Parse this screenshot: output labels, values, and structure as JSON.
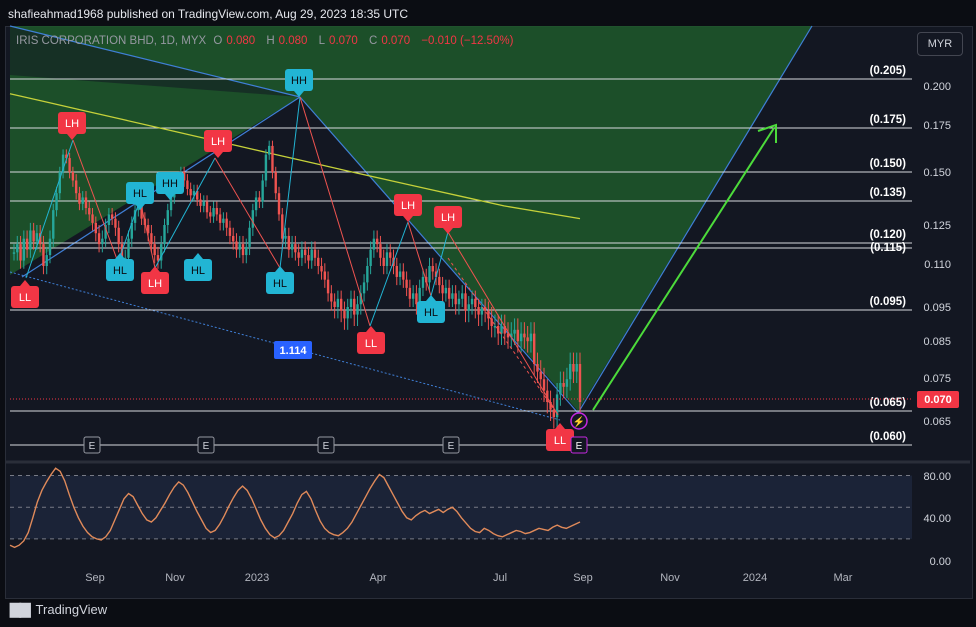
{
  "attribution": "shafieahmad1968 published on TradingView.com, Aug 29, 2023 18:35 UTC",
  "symbol": {
    "name": "IRIS CORPORATION BHD, 1D, MYX",
    "o_label": "O",
    "o": "0.080",
    "h_label": "H",
    "h": "0.080",
    "l_label": "L",
    "l": "0.070",
    "c_label": "C",
    "c": "0.070",
    "change": "−0.010 (−12.50%)"
  },
  "currency_button": "MYR",
  "brand": "TradingView",
  "colors": {
    "bull": "#26a69a",
    "bear": "#ef5350",
    "label_red": "#f23645",
    "label_cyan": "#22b5d4",
    "channel_fill": "#1e5b2b",
    "rsi_line": "#e08a5a",
    "ema": "#c5d13a",
    "arrow": "#4cdb3b"
  },
  "chart_data": [
    {
      "type": "candlestick",
      "title": "",
      "x_tick_labels": [
        "Sep",
        "Nov",
        "2023",
        "Apr",
        "Jul",
        "Sep",
        "Nov",
        "2024",
        "Mar"
      ],
      "y_tick_labels": [
        "0.200",
        "0.175",
        "0.150",
        "0.125",
        "0.110",
        "0.095",
        "0.085",
        "0.075",
        "0.065"
      ],
      "current_price": "0.070",
      "fib_levels": [
        {
          "label": "(0.205)",
          "value": 0.205
        },
        {
          "label": "(0.175)",
          "value": 0.175
        },
        {
          "label": "(0.150)",
          "value": 0.15
        },
        {
          "label": "(0.135)",
          "value": 0.135
        },
        {
          "label": "(0.120)",
          "value": 0.12
        },
        {
          "label": "(0.115)",
          "value": 0.115
        },
        {
          "label": "(0.095)",
          "value": 0.095
        },
        {
          "label": "(0.065)",
          "value": 0.065
        },
        {
          "label": "(0.060)",
          "value": 0.06
        }
      ],
      "swing_labels": [
        "LL",
        "LH",
        "HL",
        "HL",
        "LH",
        "HH",
        "HL",
        "LH",
        "HL",
        "HH",
        "LL",
        "LH",
        "HL",
        "LH",
        "LL"
      ],
      "event_markers": [
        "E",
        "E",
        "E",
        "E",
        "E"
      ],
      "annotation": "1.114",
      "closes": [
        0.115,
        0.118,
        0.112,
        0.12,
        0.116,
        0.123,
        0.119,
        0.122,
        0.118,
        0.11,
        0.114,
        0.12,
        0.132,
        0.14,
        0.15,
        0.16,
        0.158,
        0.15,
        0.146,
        0.14,
        0.135,
        0.138,
        0.133,
        0.13,
        0.126,
        0.122,
        0.118,
        0.12,
        0.125,
        0.13,
        0.128,
        0.124,
        0.118,
        0.112,
        0.113,
        0.12,
        0.126,
        0.132,
        0.135,
        0.128,
        0.125,
        0.122,
        0.118,
        0.114,
        0.112,
        0.118,
        0.125,
        0.132,
        0.138,
        0.143,
        0.147,
        0.15,
        0.146,
        0.142,
        0.139,
        0.141,
        0.137,
        0.134,
        0.136,
        0.131,
        0.129,
        0.133,
        0.13,
        0.126,
        0.128,
        0.124,
        0.121,
        0.119,
        0.116,
        0.118,
        0.114,
        0.117,
        0.124,
        0.132,
        0.138,
        0.136,
        0.146,
        0.16,
        0.165,
        0.15,
        0.14,
        0.13,
        0.12,
        0.121,
        0.116,
        0.118,
        0.115,
        0.113,
        0.116,
        0.114,
        0.112,
        0.116,
        0.113,
        0.11,
        0.108,
        0.105,
        0.1,
        0.097,
        0.095,
        0.098,
        0.094,
        0.092,
        0.095,
        0.098,
        0.093,
        0.096,
        0.1,
        0.104,
        0.11,
        0.116,
        0.12,
        0.118,
        0.113,
        0.11,
        0.115,
        0.113,
        0.11,
        0.106,
        0.108,
        0.105,
        0.102,
        0.098,
        0.1,
        0.096,
        0.102,
        0.106,
        0.104,
        0.11,
        0.108,
        0.106,
        0.103,
        0.1,
        0.102,
        0.098,
        0.1,
        0.096,
        0.098,
        0.1,
        0.094,
        0.096,
        0.098,
        0.095,
        0.093,
        0.095,
        0.094,
        0.092,
        0.09,
        0.09,
        0.088,
        0.09,
        0.088,
        0.087,
        0.088,
        0.089,
        0.086,
        0.088,
        0.087,
        0.086,
        0.088,
        0.08,
        0.078,
        0.076,
        0.073,
        0.07,
        0.068,
        0.066,
        0.072,
        0.075,
        0.074,
        0.076,
        0.08,
        0.078,
        0.08,
        0.07
      ],
      "ema": [
        0.195,
        0.19,
        0.185,
        0.18,
        0.175,
        0.17,
        0.165,
        0.16,
        0.155,
        0.15,
        0.146,
        0.142,
        0.138,
        0.134,
        0.131,
        0.128
      ],
      "rsi": {
        "ylim": [
          0,
          90
        ],
        "y_tick_labels": [
          "80.00",
          "40.00",
          "0.00"
        ],
        "values": [
          14,
          12,
          14,
          18,
          26,
          40,
          55,
          66,
          74,
          81,
          87,
          84,
          75,
          62,
          50,
          40,
          32,
          26,
          22,
          20,
          19,
          22,
          28,
          38,
          48,
          58,
          63,
          60,
          52,
          44,
          38,
          36,
          40,
          47,
          54,
          62,
          69,
          74,
          71,
          64,
          55,
          46,
          38,
          30,
          26,
          28,
          34,
          42,
          51,
          59,
          66,
          70,
          66,
          58,
          48,
          38,
          30,
          24,
          21,
          23,
          28,
          36,
          44,
          54,
          62,
          65,
          58,
          47,
          37,
          30,
          26,
          24,
          23,
          26,
          30,
          36,
          44,
          52,
          60,
          68,
          75,
          81,
          78,
          70,
          62,
          54,
          46,
          40,
          38,
          42,
          45,
          47,
          44,
          46,
          48,
          45,
          48,
          50,
          46,
          40,
          35,
          30,
          27,
          26,
          30,
          28,
          25,
          23,
          22,
          24,
          26,
          28,
          27,
          25,
          26,
          28,
          30,
          29,
          28,
          31,
          33,
          31,
          30,
          32,
          34,
          36
        ]
      }
    }
  ]
}
